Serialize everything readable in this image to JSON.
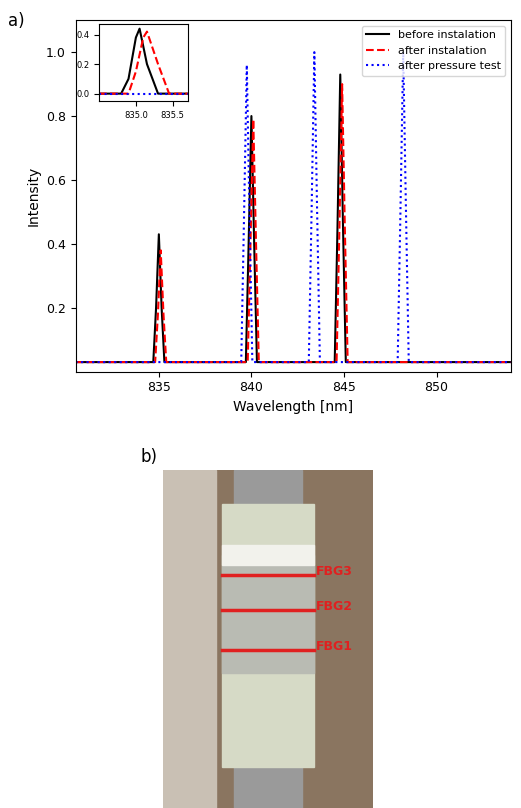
{
  "panel_labels": [
    "a)",
    "b)"
  ],
  "chart_data": [
    {
      "type": "line",
      "xlabel": "Wavelength [nm]",
      "ylabel": "Intensity",
      "xlim": [
        830.5,
        854
      ],
      "xticks": [
        835,
        840,
        845,
        850
      ],
      "ylim": [
        0.0,
        1.1
      ],
      "yticks": [
        0.2,
        0.4,
        0.6,
        0.8,
        1.0
      ],
      "legend": "upper right",
      "series": [
        {
          "name": "before instalation",
          "color": "#000000",
          "line_style": "solid",
          "x": [
            830.5,
            834.7,
            834.85,
            835.0,
            835.15,
            835.3,
            839.7,
            839.85,
            840.0,
            840.15,
            840.3,
            844.5,
            844.65,
            844.8,
            844.95,
            845.1,
            854
          ],
          "values": [
            0.03,
            0.03,
            0.2,
            0.43,
            0.2,
            0.03,
            0.03,
            0.4,
            0.8,
            0.4,
            0.03,
            0.03,
            0.45,
            0.93,
            0.45,
            0.03,
            0.03
          ]
        },
        {
          "name": "after instalation",
          "color": "#ff0000",
          "line_style": "dashed",
          "x": [
            830.5,
            834.8,
            834.95,
            835.1,
            835.25,
            835.4,
            839.8,
            839.95,
            840.1,
            840.25,
            840.4,
            844.6,
            844.75,
            844.9,
            845.05,
            845.2,
            854
          ],
          "values": [
            0.03,
            0.03,
            0.18,
            0.38,
            0.18,
            0.03,
            0.03,
            0.4,
            0.79,
            0.4,
            0.03,
            0.03,
            0.44,
            0.9,
            0.44,
            0.03,
            0.03
          ]
        },
        {
          "name": "after pressure test",
          "color": "#0000ff",
          "line_style": "dotted",
          "x": [
            830.5,
            839.45,
            839.6,
            839.75,
            839.9,
            840.05,
            843.1,
            843.25,
            843.4,
            843.55,
            843.7,
            847.9,
            848.05,
            848.2,
            848.35,
            848.5,
            854
          ],
          "values": [
            0.03,
            0.03,
            0.48,
            0.96,
            0.48,
            0.03,
            0.03,
            0.5,
            1.0,
            0.5,
            0.03,
            0.03,
            0.5,
            1.0,
            0.5,
            0.03,
            0.03
          ]
        }
      ]
    },
    {
      "type": "line",
      "xlim": [
        834.5,
        835.7
      ],
      "xticks": [
        835.0,
        835.5
      ],
      "ylim": [
        -0.05,
        0.47
      ],
      "yticks": [
        0.0,
        0.2,
        0.4
      ],
      "series": [
        {
          "color": "#000000",
          "line_style": "solid",
          "x": [
            834.5,
            834.8,
            834.9,
            835.0,
            835.05,
            835.15,
            835.3,
            835.7
          ],
          "values": [
            0.0,
            0.0,
            0.1,
            0.38,
            0.44,
            0.2,
            0.0,
            0.0
          ]
        },
        {
          "color": "#ff0000",
          "line_style": "dashed",
          "x": [
            834.5,
            834.9,
            835.0,
            835.1,
            835.15,
            835.3,
            835.45,
            835.7
          ],
          "values": [
            0.0,
            0.0,
            0.15,
            0.38,
            0.42,
            0.2,
            0.0,
            0.0
          ]
        },
        {
          "color": "#0000ff",
          "line_style": "dotted",
          "x": [
            834.5,
            835.7
          ],
          "values": [
            0.0,
            0.0
          ]
        }
      ]
    }
  ],
  "photo": {
    "labels": [
      "FBG3",
      "FBG2",
      "FBG1"
    ]
  }
}
